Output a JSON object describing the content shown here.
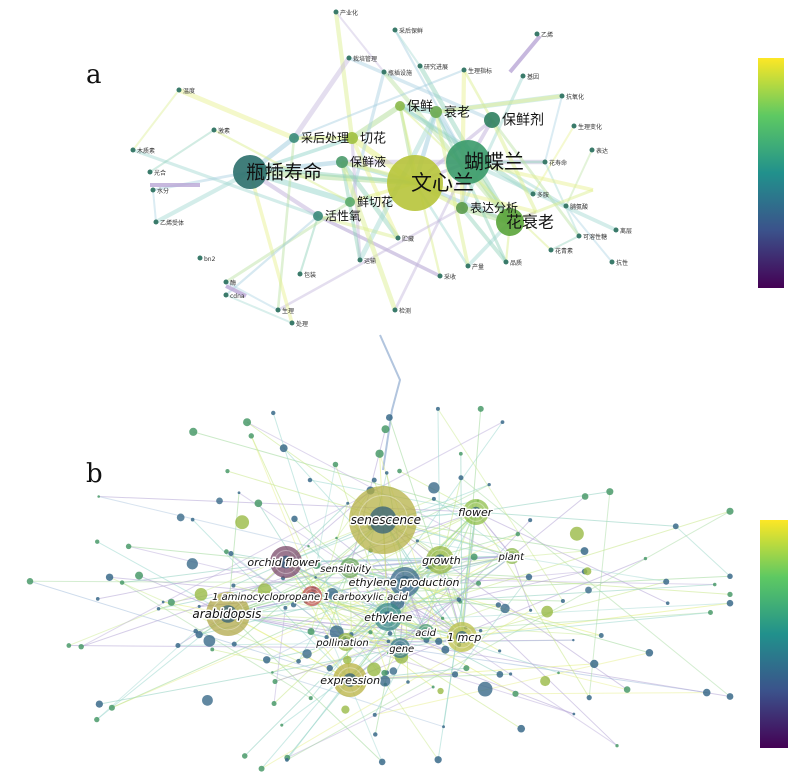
{
  "panel_a": {
    "letter": "a",
    "main_labels": [
      {
        "id": "pcsm",
        "text": "瓶插寿命",
        "r": 17,
        "size": 19,
        "color": "#2b6f6b"
      },
      {
        "id": "wxl",
        "text": "文心兰",
        "r": 28,
        "size": 21,
        "color": "#b7c43a"
      },
      {
        "id": "hdl",
        "text": "蝴蝶兰",
        "r": 22,
        "size": 20,
        "color": "#3a9a6a"
      },
      {
        "id": "hsl",
        "text": "花衰老",
        "r": 14,
        "size": 16,
        "color": "#5aa43a"
      },
      {
        "id": "bxj",
        "text": "保鲜剂",
        "r": 8,
        "size": 14,
        "color": "#2f7f5f"
      },
      {
        "id": "cl",
        "text": "衰老",
        "r": 6,
        "size": 13,
        "color": "#6aa84f"
      },
      {
        "id": "bx",
        "text": "保鲜",
        "r": 5,
        "size": 13,
        "color": "#8bb84a"
      },
      {
        "id": "qh",
        "text": "切花",
        "r": 6,
        "size": 13,
        "color": "#a0c040"
      },
      {
        "id": "chcl",
        "text": "采后处理",
        "r": 5,
        "size": 12,
        "color": "#3a8a7a"
      },
      {
        "id": "bxy",
        "text": "保鲜液",
        "r": 6,
        "size": 12,
        "color": "#4a9a6a"
      },
      {
        "id": "xqh",
        "text": "鲜切花",
        "r": 5,
        "size": 12,
        "color": "#5aaa6a"
      },
      {
        "id": "hxy",
        "text": "活性氧",
        "r": 5,
        "size": 12,
        "color": "#3a8a7a"
      },
      {
        "id": "bdfx",
        "text": "表达分析",
        "r": 6,
        "size": 12,
        "color": "#5a9a4a"
      }
    ],
    "small_labels": [
      "产业化",
      "采后保鲜",
      "栽培管理",
      "瓶插设施",
      "研究进展",
      "生理指标",
      "乙烯",
      "基因",
      "抗氧化",
      "生理变化",
      "表达",
      "花寿命",
      "多胺",
      "脯氨酸",
      "可溶性糖",
      "离层",
      "抗性",
      "花青素",
      "品质",
      "产量",
      "采收",
      "贮藏",
      "运输",
      "包装",
      "生理",
      "处理",
      "检测",
      "酶",
      "cdna",
      "bn2",
      "乙烯受体",
      "木质素",
      "光合",
      "水分",
      "温度",
      "激素",
      "nod"
    ],
    "colorbar": {
      "stops": [
        "#440154",
        "#3b528b",
        "#21918c",
        "#5ec962",
        "#fde725"
      ]
    }
  },
  "panel_b": {
    "letter": "b",
    "keywords": [
      {
        "id": "senescence",
        "text": "senescence",
        "r": 34,
        "size": 12,
        "color": "#b5b246"
      },
      {
        "id": "flower",
        "text": "flower",
        "r": 13,
        "size": 11,
        "color": "#8fbf4a"
      },
      {
        "id": "orchid",
        "text": "orchid flower",
        "r": 16,
        "size": 11,
        "color": "#7a4a6a"
      },
      {
        "id": "sensitivity",
        "text": "sensitivity",
        "r": 10,
        "size": 10,
        "color": "#6aa45a"
      },
      {
        "id": "growth",
        "text": "growth",
        "r": 14,
        "size": 11,
        "color": "#9aba46"
      },
      {
        "id": "plant",
        "text": "plant",
        "r": 8,
        "size": 10,
        "color": "#8bb84a"
      },
      {
        "id": "ethprod",
        "text": "ethylene production",
        "r": 15,
        "size": 11,
        "color": "#3b6a8b"
      },
      {
        "id": "acc",
        "text": "1 aminocyclopropane 1 carboxylic acid",
        "r": 10,
        "size": 10,
        "color": "#c0504d"
      },
      {
        "id": "arabidopsis",
        "text": "arabidopsis",
        "r": 22,
        "size": 12,
        "color": "#b2a84a"
      },
      {
        "id": "ethylene",
        "text": "ethylene",
        "r": 14,
        "size": 11,
        "color": "#3a8a8a"
      },
      {
        "id": "acid",
        "text": "acid",
        "r": 8,
        "size": 10,
        "color": "#4a9a7a"
      },
      {
        "id": "mcp",
        "text": "1 mcp",
        "r": 15,
        "size": 11,
        "color": "#bcc04a"
      },
      {
        "id": "pollination",
        "text": "pollination",
        "r": 9,
        "size": 10,
        "color": "#9aba46"
      },
      {
        "id": "gene",
        "text": "gene",
        "r": 10,
        "size": 10,
        "color": "#3a7a8a"
      },
      {
        "id": "expression",
        "text": "expression",
        "r": 17,
        "size": 11,
        "color": "#b8b240"
      }
    ],
    "colorbar": {
      "stops": [
        "#440154",
        "#3b528b",
        "#21918c",
        "#5ec962",
        "#fde725"
      ]
    }
  }
}
